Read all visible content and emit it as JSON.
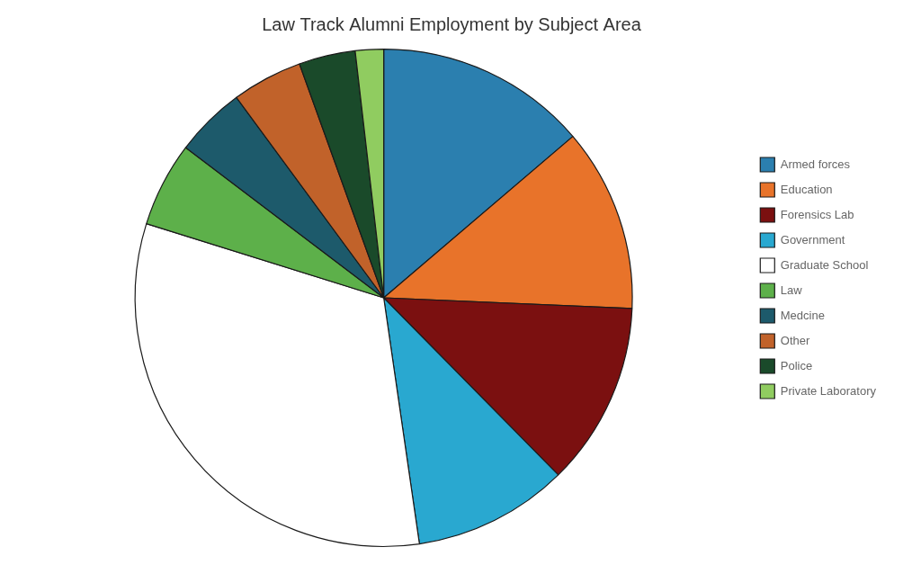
{
  "chart_data": {
    "type": "pie",
    "title": "Law Track Alumni Employment by Subject Area",
    "categories": [
      "Armed forces",
      "Education",
      "Forensics Lab",
      "Government",
      "Graduate School",
      "Law",
      "Medcine",
      "Other",
      "Police",
      "Private Laboratory"
    ],
    "values": [
      15,
      13,
      13,
      11,
      35,
      6,
      5,
      5,
      4,
      2
    ],
    "colors": [
      "#2B7FAF",
      "#E8732A",
      "#7B1010",
      "#29A8D0",
      "#FFFFFF",
      "#5DB04A",
      "#1D5A6B",
      "#C1622A",
      "#1A4A2A",
      "#90CC60"
    ],
    "legend": "right"
  }
}
